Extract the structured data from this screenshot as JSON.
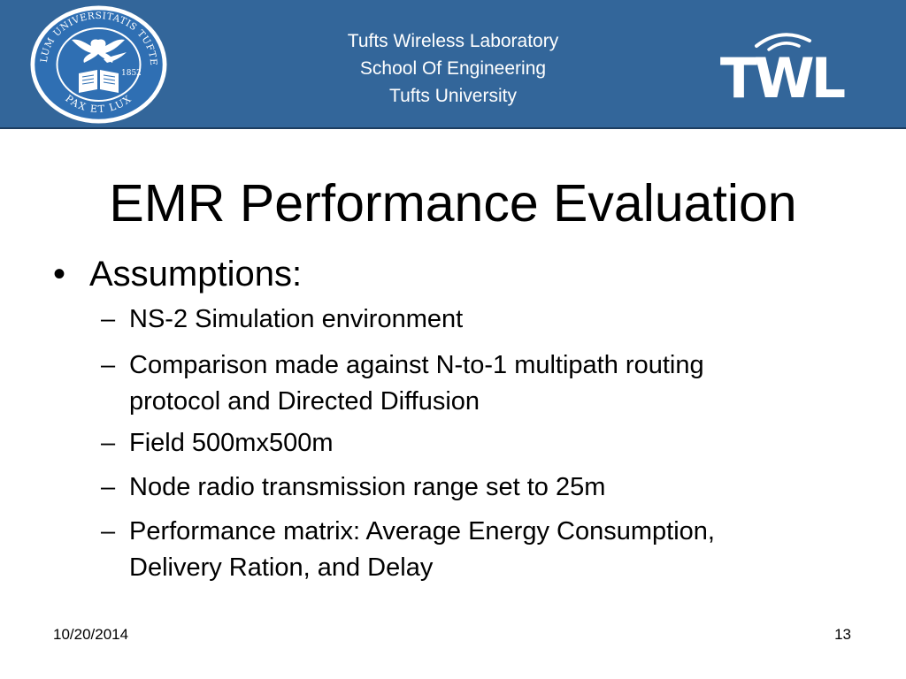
{
  "header": {
    "lines": [
      "Tufts Wireless Laboratory",
      "School Of Engineering",
      "Tufts University"
    ],
    "seal": {
      "icon": "tufts-university-seal-icon",
      "text_top": "SIGILLUM UNIVERSITATIS TUFTENSIS",
      "text_bottom": "PAX ET LUX",
      "year": "1852"
    },
    "logo": {
      "icon": "twl-logo-icon",
      "text": "TWL"
    },
    "background_color": "#33669a"
  },
  "slide": {
    "title": "EMR Performance Evaluation",
    "bullet": {
      "marker": "•",
      "text": "Assumptions:"
    },
    "dash_marker": "–",
    "sub_items": [
      {
        "lines": [
          "NS-2 Simulation environment"
        ]
      },
      {
        "lines": [
          "Comparison made against N-to-1 multipath routing",
          "protocol and Directed Diffusion"
        ]
      },
      {
        "lines": [
          "Field 500mx500m"
        ]
      },
      {
        "lines": [
          "Node radio transmission range set to 25m"
        ]
      },
      {
        "lines": [
          "Performance matrix: Average Energy Consumption,",
          "Delivery Ration, and Delay"
        ]
      }
    ]
  },
  "footer": {
    "date": "10/20/2014",
    "page_number": "13"
  }
}
